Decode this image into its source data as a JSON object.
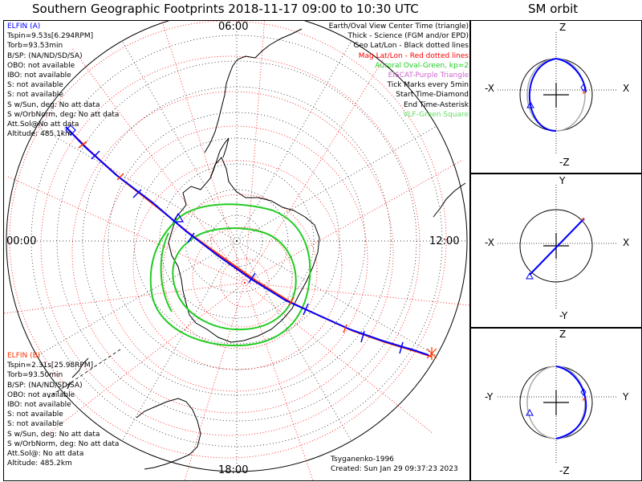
{
  "title": "Southern Geographic Footprints 2018-11-17 09:00 to 10:30 UTC",
  "sm_title": "SM orbit",
  "map": {
    "time_labels": {
      "top": "06:00",
      "left": "00:00",
      "right": "12:00",
      "bottom": "18:00"
    }
  },
  "elfin_a": {
    "name": "ELFIN (A)",
    "lines": [
      "Tspin=9.53s[6.294RPM]",
      "Torb=93.53min",
      "B/SP: (NA/ND/SD/SA)",
      "OBO: not available",
      "IBO: not available",
      "S: not available",
      "S: not available",
      "S w/Sun, deg: No att data",
      "S w/OrbNorm, deg: No att data",
      "Att.Sol@No att data",
      "Altitude: 485.1km"
    ],
    "color": "#0000ff"
  },
  "elfin_b": {
    "name": "ELFIN (B)",
    "lines": [
      "Tspin=2.31s[25.98RPM]",
      "Torb=93.50min",
      "B/SP: (NA/ND/SD/SA)",
      "OBO: not available",
      "IBO: not available",
      "S: not available",
      "S: not available",
      "S w/Sun, deg: No att data",
      "S w/OrbNorm, deg: No att data",
      "Att.Sol@: No att data",
      "Altitude: 485.2km"
    ],
    "color": "#ff3300"
  },
  "legend": [
    {
      "text": "Earth/Oval View Center Time (triangle)",
      "color": "#000000"
    },
    {
      "text": "Thick - Science (FGM and/or EPD)",
      "color": "#000000"
    },
    {
      "text": "Geo Lat/Lon - Black dotted lines",
      "color": "#000000"
    },
    {
      "text": "Mag Lat/Lon - Red dotted lines",
      "color": "#ff0000"
    },
    {
      "text": "Auroral Oval-Green, kp=2",
      "color": "#22cc22"
    },
    {
      "text": "EISCAT-Purple Triangle",
      "color": "#cc66cc"
    },
    {
      "text": "Tick Marks every 5min",
      "color": "#000000"
    },
    {
      "text": "Start Time-Diamond",
      "color": "#000000"
    },
    {
      "text": "End Time-Asterisk",
      "color": "#000000"
    },
    {
      "text": "VLF-Green Square",
      "color": "#66dd66"
    }
  ],
  "footer": {
    "model": "Tsyganenko-1996",
    "created": "Created: Sun Jan 29 09:37:23 2023"
  },
  "sm_panels": [
    {
      "top": "Z",
      "bottom": "-Z",
      "left": "-X",
      "right": "X"
    },
    {
      "top": "Y",
      "bottom": "-Y",
      "left": "-X",
      "right": "X"
    },
    {
      "top": "Z",
      "bottom": "-Z",
      "left": "-Y",
      "right": "Y"
    }
  ],
  "colors": {
    "elfin_a": "#0000ff",
    "elfin_b": "#ff3300",
    "oval": "#22cc22",
    "grid_geo": "#000000",
    "grid_mag": "#ff0000"
  }
}
